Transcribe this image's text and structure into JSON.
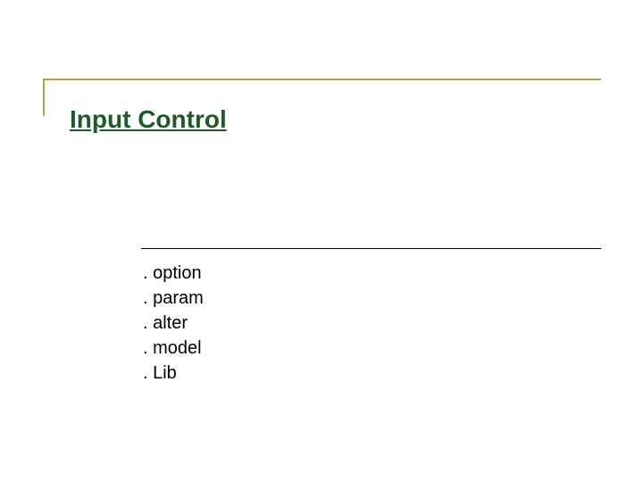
{
  "slide": {
    "title": "Input Control",
    "title_color": "#1f5a2a",
    "title_fontsize": 28,
    "top_rule_color": "#b0a24a",
    "left_accent_color": "#b0a24a",
    "mid_rule_color": "#000000",
    "background_color": "#ffffff",
    "list": {
      "items": [
        ". option",
        ". param",
        ". alter",
        ". model",
        ". Lib"
      ],
      "fontsize": 20,
      "line_height": 28,
      "color": "#000000"
    }
  }
}
